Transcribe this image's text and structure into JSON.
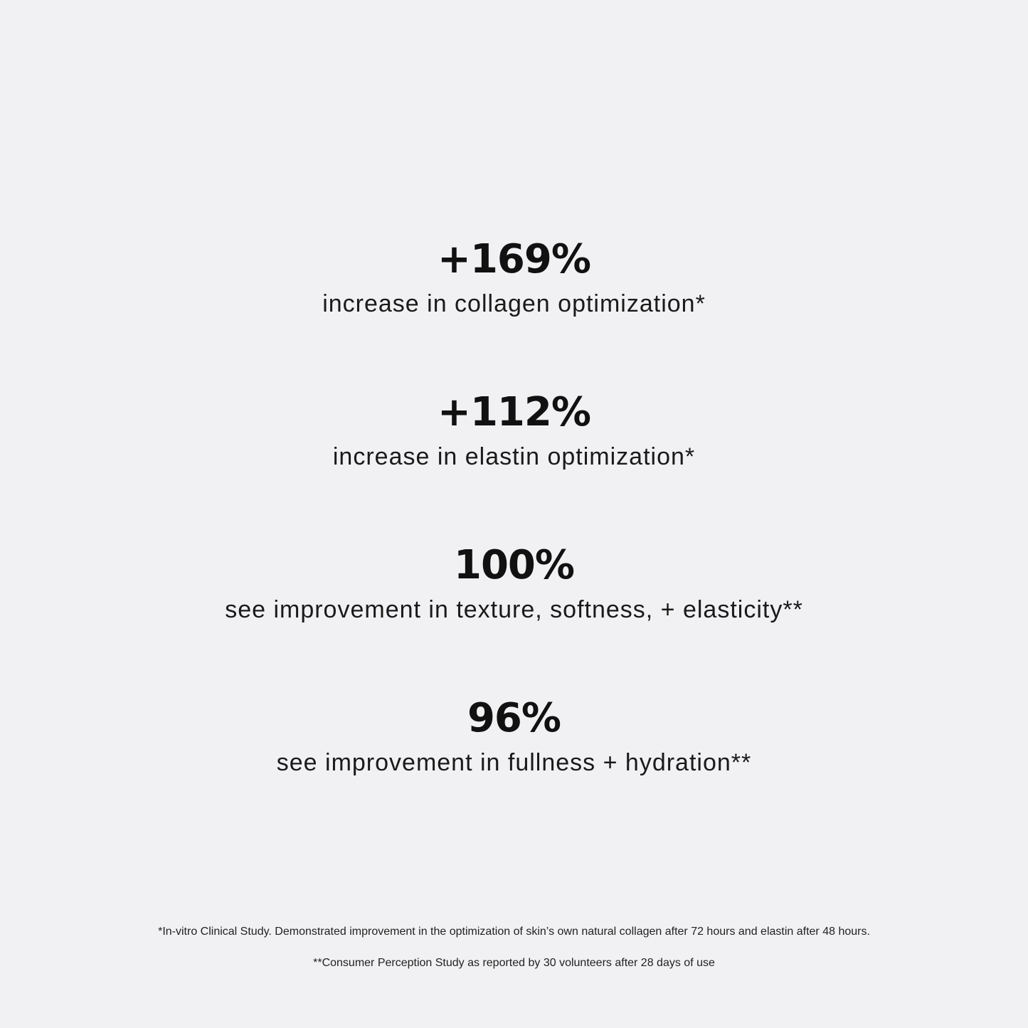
{
  "stats": [
    {
      "value": "+169%",
      "description": "increase in collagen optimization*"
    },
    {
      "value": "+112%",
      "description": "increase in elastin optimization*"
    },
    {
      "value": "100%",
      "description": "see improvement in texture, softness, + elasticity**"
    },
    {
      "value": "96%",
      "description": "see improvement in fullness + hydration**"
    }
  ],
  "footnotes": [
    "*In-vitro Clinical Study. Demonstrated improvement in the optimization of skin’s own natural collagen after 72 hours and elastin after 48 hours.",
    "**Consumer Perception Study as reported by 30 volunteers after 28 days of use"
  ],
  "colors": {
    "background": "#f1f1f3",
    "text": "#111111"
  }
}
